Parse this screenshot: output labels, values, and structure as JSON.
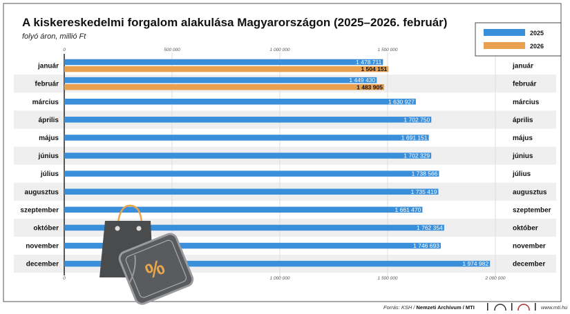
{
  "chart_data": {
    "type": "bar",
    "orientation": "horizontal",
    "title": "A kiskereskedelmi forgalom alakulása Magyarországon (2025–2026. február)",
    "subtitle": "folyó áron, millió Ft",
    "categories": [
      "január",
      "február",
      "március",
      "április",
      "május",
      "június",
      "július",
      "augusztus",
      "szeptember",
      "október",
      "november",
      "december"
    ],
    "series": [
      {
        "name": "2025",
        "color": "#3a8fdb",
        "values": [
          1478711,
          1449430,
          1630927,
          1702750,
          1691151,
          1702329,
          1738566,
          1735419,
          1661470,
          1762354,
          1746693,
          1974982
        ],
        "labels": [
          "1 478 711",
          "1 449 430",
          "1 630 927",
          "1 702 750",
          "1 691 151",
          "1 702 329",
          "1 738 566",
          "1 735 419",
          "1 661 470",
          "1 762 354",
          "1 746 693",
          "1 974 982"
        ]
      },
      {
        "name": "2026",
        "color": "#e9a050",
        "values": [
          1504151,
          1483905,
          null,
          null,
          null,
          null,
          null,
          null,
          null,
          null,
          null,
          null
        ],
        "labels": [
          "1 504 151",
          "1 483 905"
        ]
      }
    ],
    "xlim": [
      0,
      2000000
    ],
    "ticks_top": [
      {
        "v": 0,
        "label": "0"
      },
      {
        "v": 500000,
        "label": "500 000"
      },
      {
        "v": 1000000,
        "label": "1 000 000"
      },
      {
        "v": 1500000,
        "label": "1 500 000"
      }
    ],
    "ticks_bottom": [
      {
        "v": 0,
        "label": "0"
      },
      {
        "v": 1000000,
        "label": "1 000 000"
      },
      {
        "v": 1500000,
        "label": "1 500 000"
      },
      {
        "v": 2000000,
        "label": "2 000 000"
      }
    ],
    "legend": "top-right",
    "grid": true
  },
  "footer": {
    "source_prefix": "Forrás: KSH / ",
    "source_bold": "Nemzeti Archívum / MTI",
    "logo1": "MTI",
    "logo2": "MTI",
    "url": "www.mti.hu"
  }
}
